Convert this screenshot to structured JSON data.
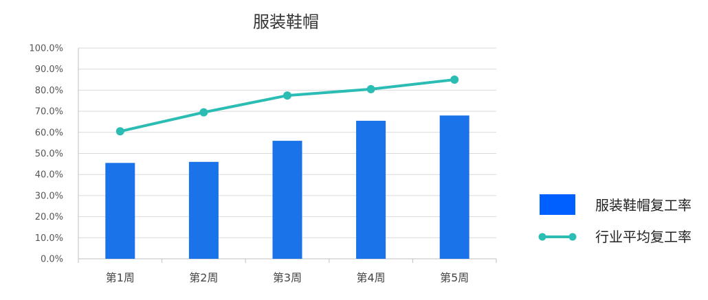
{
  "chart_data": {
    "type": "bar",
    "title": "服装鞋帽",
    "categories": [
      "第1周",
      "第2周",
      "第3周",
      "第4周",
      "第5周"
    ],
    "series": [
      {
        "name": "服装鞋帽复工率",
        "type": "bar",
        "color": "#1a73e8",
        "values": [
          45.5,
          46.0,
          56.0,
          65.5,
          68.0
        ]
      },
      {
        "name": "行业平均复工率",
        "type": "line",
        "color": "#2bbcb4",
        "values": [
          60.5,
          69.5,
          77.5,
          80.5,
          85.0
        ]
      }
    ],
    "ylim": [
      0,
      100
    ],
    "yticks": [
      "0.0%",
      "10.0%",
      "20.0%",
      "30.0%",
      "40.0%",
      "50.0%",
      "60.0%",
      "70.0%",
      "80.0%",
      "90.0%",
      "100.0%"
    ],
    "grid": true,
    "legend": "right"
  }
}
